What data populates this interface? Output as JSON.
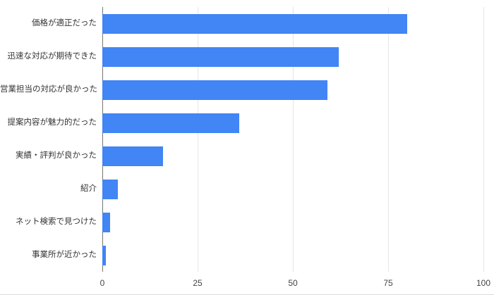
{
  "chart": {
    "background_color": "#ffffff",
    "bar_color": "#4285f4",
    "gridline_color": "#e6e6e6",
    "axis_line_color": "#757575",
    "label_color": "#333333",
    "tick_label_color": "#444444"
  },
  "chart_data": {
    "type": "bar",
    "orientation": "horizontal",
    "title": "",
    "xlabel": "",
    "ylabel": "",
    "categories": [
      "価格が適正だった",
      "迅速な対応が期待できた",
      "営業担当の対応が良かった",
      "提案内容が魅力的だった",
      "実績・評判が良かった",
      "紹介",
      "ネット検索で見つけた",
      "事業所が近かった"
    ],
    "values": [
      80,
      62,
      59,
      36,
      16,
      4,
      2,
      1
    ],
    "xlim": [
      0,
      100
    ],
    "xticks": [
      0,
      25,
      50,
      75,
      100
    ],
    "grid": "vertical",
    "legend": "none"
  }
}
